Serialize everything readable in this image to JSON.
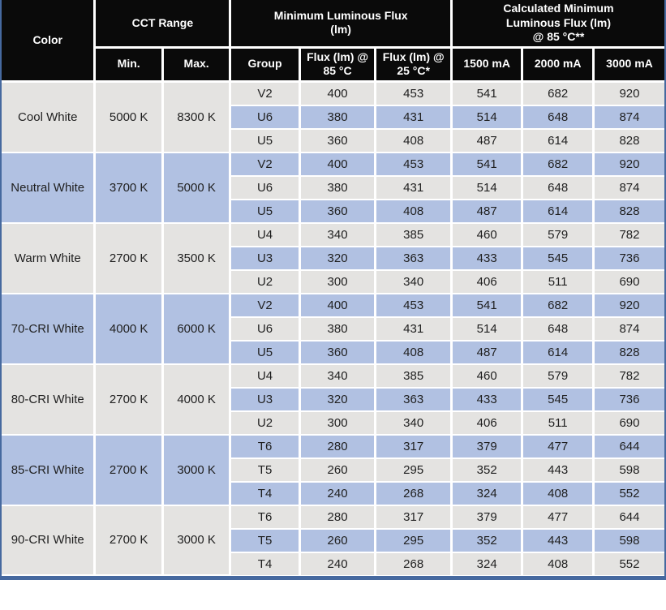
{
  "colors": {
    "header_bg": "#0a0a0a",
    "header_text": "#ffffff",
    "row_gray": "#e4e3e1",
    "row_blue": "#b1c1e2",
    "separator": "#46699f",
    "body_text": "#1f1f1f"
  },
  "table": {
    "header": {
      "color": "Color",
      "cct_range": "CCT Range",
      "min": "Min.",
      "max": "Max.",
      "min_lum_flux": "Minimum Luminous Flux\n(lm)",
      "group": "Group",
      "flux_85": "Flux (lm) @\n85 °C",
      "flux_25": "Flux (lm) @\n25 °C*",
      "calc_min_flux": "Calculated Minimum\nLuminous Flux (lm)\n@ 85 °C**",
      "ma_1500": "1500 mA",
      "ma_2000": "2000 mA",
      "ma_3000": "3000 mA"
    },
    "groups": [
      {
        "color": "Cool White",
        "cct_min": "5000 K",
        "cct_max": "8300 K",
        "rows": [
          {
            "group": "V2",
            "flux_85": "400",
            "flux_25": "453",
            "ma_1500": "541",
            "ma_2000": "682",
            "ma_3000": "920"
          },
          {
            "group": "U6",
            "flux_85": "380",
            "flux_25": "431",
            "ma_1500": "514",
            "ma_2000": "648",
            "ma_3000": "874"
          },
          {
            "group": "U5",
            "flux_85": "360",
            "flux_25": "408",
            "ma_1500": "487",
            "ma_2000": "614",
            "ma_3000": "828"
          }
        ]
      },
      {
        "color": "Neutral White",
        "cct_min": "3700 K",
        "cct_max": "5000 K",
        "rows": [
          {
            "group": "V2",
            "flux_85": "400",
            "flux_25": "453",
            "ma_1500": "541",
            "ma_2000": "682",
            "ma_3000": "920"
          },
          {
            "group": "U6",
            "flux_85": "380",
            "flux_25": "431",
            "ma_1500": "514",
            "ma_2000": "648",
            "ma_3000": "874"
          },
          {
            "group": "U5",
            "flux_85": "360",
            "flux_25": "408",
            "ma_1500": "487",
            "ma_2000": "614",
            "ma_3000": "828"
          }
        ]
      },
      {
        "color": "Warm White",
        "cct_min": "2700 K",
        "cct_max": "3500 K",
        "rows": [
          {
            "group": "U4",
            "flux_85": "340",
            "flux_25": "385",
            "ma_1500": "460",
            "ma_2000": "579",
            "ma_3000": "782"
          },
          {
            "group": "U3",
            "flux_85": "320",
            "flux_25": "363",
            "ma_1500": "433",
            "ma_2000": "545",
            "ma_3000": "736"
          },
          {
            "group": "U2",
            "flux_85": "300",
            "flux_25": "340",
            "ma_1500": "406",
            "ma_2000": "511",
            "ma_3000": "690"
          }
        ]
      },
      {
        "color": "70-CRI White",
        "cct_min": "4000 K",
        "cct_max": "6000 K",
        "rows": [
          {
            "group": "V2",
            "flux_85": "400",
            "flux_25": "453",
            "ma_1500": "541",
            "ma_2000": "682",
            "ma_3000": "920"
          },
          {
            "group": "U6",
            "flux_85": "380",
            "flux_25": "431",
            "ma_1500": "514",
            "ma_2000": "648",
            "ma_3000": "874"
          },
          {
            "group": "U5",
            "flux_85": "360",
            "flux_25": "408",
            "ma_1500": "487",
            "ma_2000": "614",
            "ma_3000": "828"
          }
        ]
      },
      {
        "color": "80-CRI White",
        "cct_min": "2700 K",
        "cct_max": "4000 K",
        "rows": [
          {
            "group": "U4",
            "flux_85": "340",
            "flux_25": "385",
            "ma_1500": "460",
            "ma_2000": "579",
            "ma_3000": "782"
          },
          {
            "group": "U3",
            "flux_85": "320",
            "flux_25": "363",
            "ma_1500": "433",
            "ma_2000": "545",
            "ma_3000": "736"
          },
          {
            "group": "U2",
            "flux_85": "300",
            "flux_25": "340",
            "ma_1500": "406",
            "ma_2000": "511",
            "ma_3000": "690"
          }
        ]
      },
      {
        "color": "85-CRI White",
        "cct_min": "2700 K",
        "cct_max": "3000 K",
        "rows": [
          {
            "group": "T6",
            "flux_85": "280",
            "flux_25": "317",
            "ma_1500": "379",
            "ma_2000": "477",
            "ma_3000": "644"
          },
          {
            "group": "T5",
            "flux_85": "260",
            "flux_25": "295",
            "ma_1500": "352",
            "ma_2000": "443",
            "ma_3000": "598"
          },
          {
            "group": "T4",
            "flux_85": "240",
            "flux_25": "268",
            "ma_1500": "324",
            "ma_2000": "408",
            "ma_3000": "552"
          }
        ]
      },
      {
        "color": "90-CRI White",
        "cct_min": "2700 K",
        "cct_max": "3000 K",
        "rows": [
          {
            "group": "T6",
            "flux_85": "280",
            "flux_25": "317",
            "ma_1500": "379",
            "ma_2000": "477",
            "ma_3000": "644"
          },
          {
            "group": "T5",
            "flux_85": "260",
            "flux_25": "295",
            "ma_1500": "352",
            "ma_2000": "443",
            "ma_3000": "598"
          },
          {
            "group": "T4",
            "flux_85": "240",
            "flux_25": "268",
            "ma_1500": "324",
            "ma_2000": "408",
            "ma_3000": "552"
          }
        ]
      }
    ]
  }
}
